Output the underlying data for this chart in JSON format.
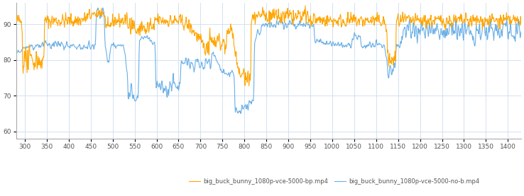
{
  "xlim": [
    280,
    1430
  ],
  "ylim": [
    58,
    96
  ],
  "yticks": [
    60,
    70,
    80,
    90
  ],
  "xticks": [
    300,
    350,
    400,
    450,
    500,
    550,
    600,
    650,
    700,
    750,
    800,
    850,
    900,
    950,
    1000,
    1050,
    1100,
    1150,
    1200,
    1250,
    1300,
    1350,
    1400
  ],
  "orange_color": "#FFA500",
  "blue_color": "#6AAFE6",
  "background_color": "#FFFFFF",
  "grid_color": "#CCDDEE",
  "legend1": "big_buck_bunny_1080p-vce-5000-bp.mp4",
  "legend2": "big_buck_bunny_1080p-vce-5000-no-b.mp4",
  "linewidth": 0.8,
  "figsize": [
    7.38,
    2.77
  ],
  "dpi": 100
}
